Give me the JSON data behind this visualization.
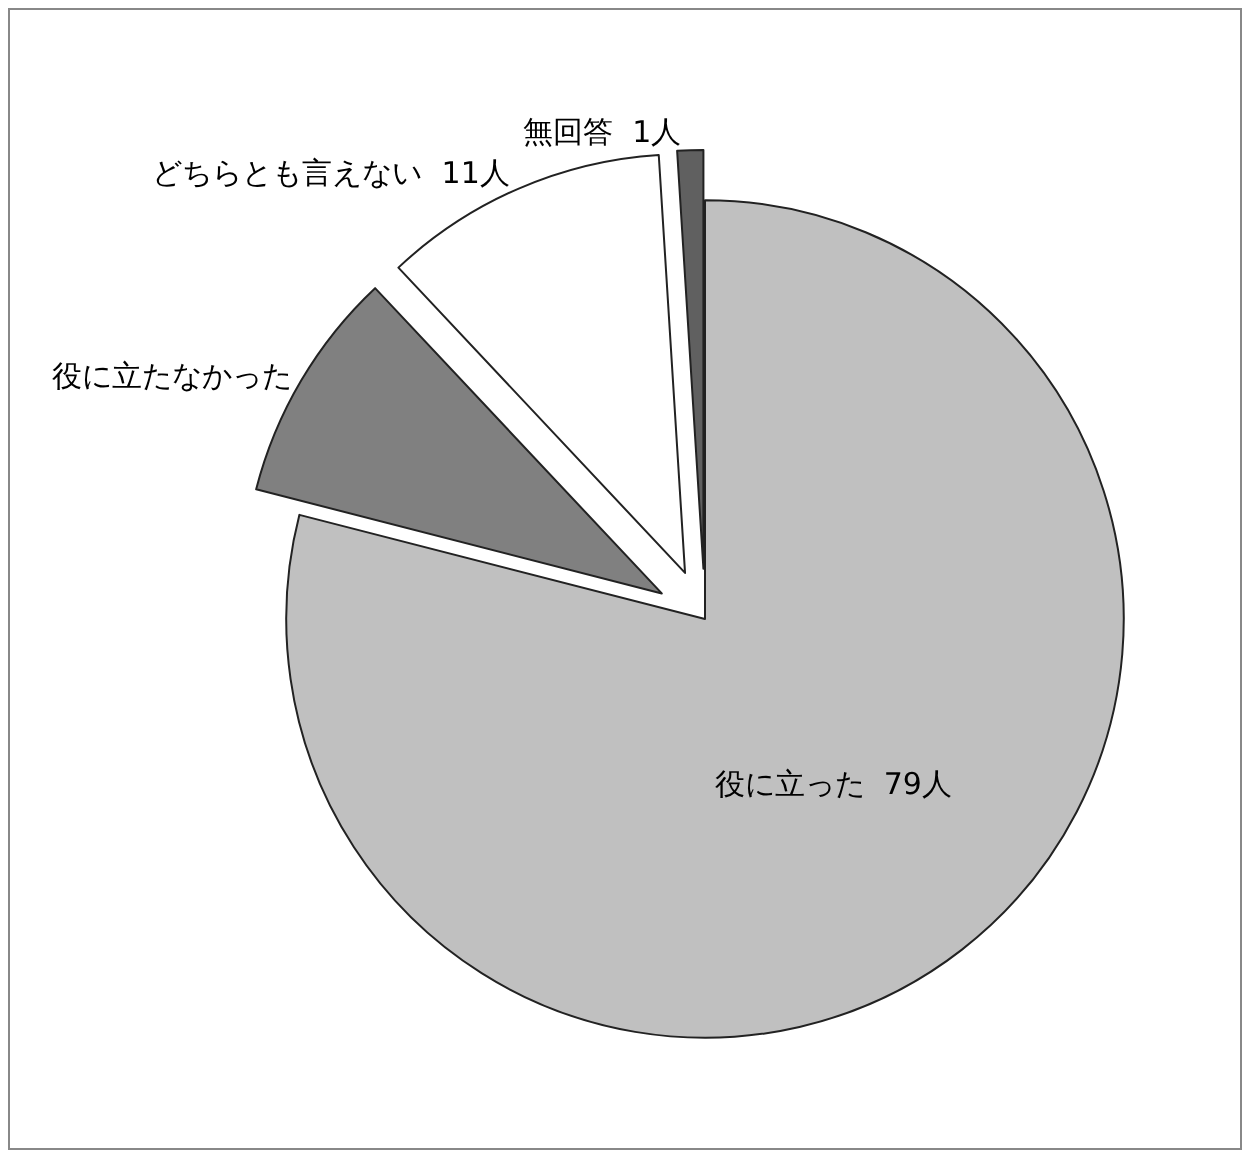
{
  "chart_data": {
    "type": "pie",
    "categories": [
      "役に立った",
      "役に立たなかった",
      "どちらとも言えない",
      "無回答"
    ],
    "values": [
      79,
      9,
      11,
      1
    ],
    "value_labels": [
      "79人",
      null,
      "11人",
      "1人"
    ],
    "colors": [
      "#c0c0c0",
      "#808080",
      "#ffffff",
      "#606060"
    ],
    "legend": false
  }
}
